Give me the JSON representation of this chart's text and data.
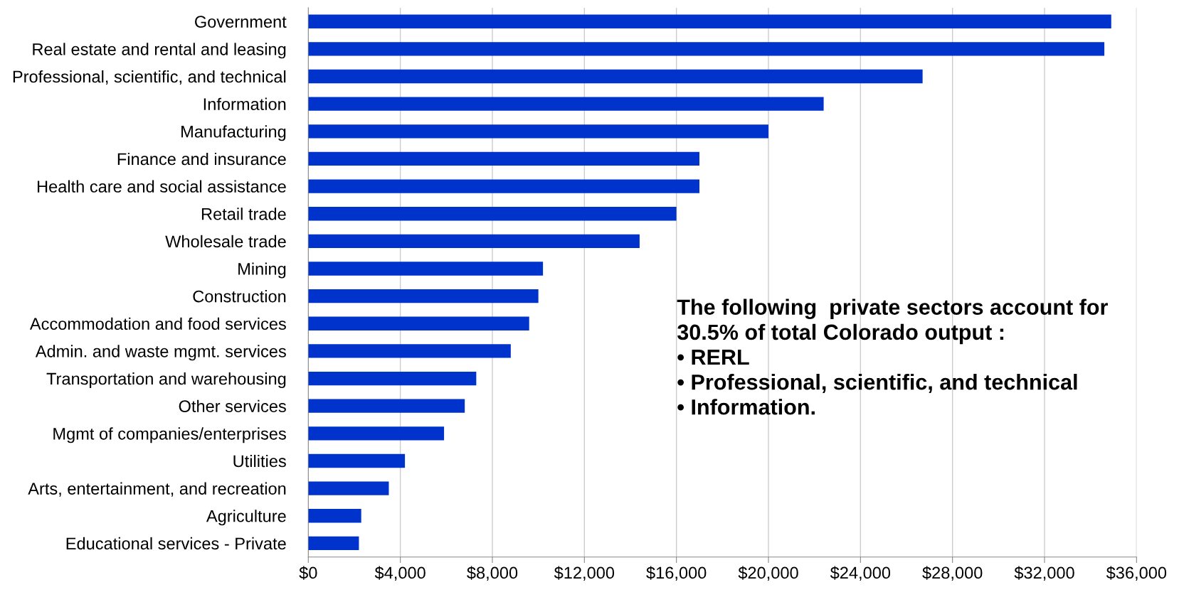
{
  "chart_data": {
    "type": "bar",
    "orientation": "horizontal",
    "categories": [
      "Government",
      "Real estate and rental and leasing",
      "Professional, scientific, and technical",
      "Information",
      "Manufacturing",
      "Finance and insurance",
      "Health care and social assistance",
      "Retail trade",
      "Wholesale trade",
      "Mining",
      "Construction",
      "Accommodation and food services",
      "Admin. and waste mgmt. services",
      "Transportation and warehousing",
      "Other services",
      "Mgmt of companies/enterprises",
      "Utilities",
      "Arts, entertainment, and recreation",
      "Agriculture",
      "Educational services - Private"
    ],
    "values": [
      34900,
      34600,
      26700,
      22400,
      20000,
      17000,
      17000,
      16000,
      14400,
      10200,
      10000,
      9600,
      8800,
      7300,
      6800,
      5900,
      4200,
      3500,
      2300,
      2200
    ],
    "color": "#0033cc",
    "xlim": [
      0,
      36000
    ],
    "xticks": [
      {
        "value": 0,
        "label": "$0"
      },
      {
        "value": 4000,
        "label": "$4,000"
      },
      {
        "value": 8000,
        "label": "$8,000"
      },
      {
        "value": 12000,
        "label": "$12,000"
      },
      {
        "value": 16000,
        "label": "$16,000"
      },
      {
        "value": 20000,
        "label": "$20,000"
      },
      {
        "value": 24000,
        "label": "$24,000"
      },
      {
        "value": 28000,
        "label": "$28,000"
      },
      {
        "value": 32000,
        "label": "$32,000"
      },
      {
        "value": 36000,
        "label": "$36,000"
      }
    ],
    "grid": "x",
    "annotations": [
      "The following  private sectors account for\n30.5% of total Colorado output :\n• RERL\n• Professional, scientific, and technical\n• Information."
    ]
  }
}
